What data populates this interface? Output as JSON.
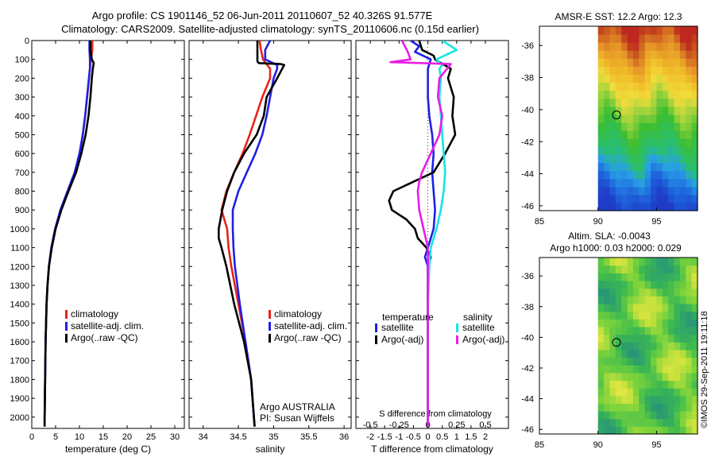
{
  "header": {
    "title_line1": "Argo profile: CS 1901146_52 06-Jun-2011 20110607_52 40.326S 91.577E",
    "title_line2": "Climatology: CARS2009. Satellite-adjusted climatology: synTS_20110606.nc (0.15d earlier)"
  },
  "colors": {
    "climatology": "#e8231a",
    "satellite": "#1f1fe6",
    "argo": "#000000",
    "salinity_sat": "#14e6e6",
    "salinity_argo": "#e61ee6"
  },
  "depth_ticks": [
    0,
    100,
    200,
    300,
    400,
    500,
    600,
    700,
    800,
    900,
    1000,
    1100,
    1200,
    1300,
    1400,
    1500,
    1600,
    1700,
    1800,
    1900,
    2000
  ],
  "depth_range": [
    0,
    2060
  ],
  "chart_data": [
    {
      "type": "line",
      "xlabel": "temperature (deg C)",
      "ylabel": "depth",
      "xlim": [
        0,
        32
      ],
      "xticks": [
        0,
        5,
        10,
        15,
        20,
        25,
        30
      ],
      "legend": [
        "climatology",
        "satellite-adj. clim.",
        "Argo(..raw -QC)"
      ],
      "series": [
        {
          "name": "climatology",
          "color": "climatology",
          "depth": [
            0,
            50,
            100,
            150,
            200,
            300,
            400,
            500,
            600,
            700,
            800,
            900,
            1000,
            1100,
            1200,
            1300,
            1400,
            1500,
            1600,
            1800,
            2000,
            2050
          ],
          "values": [
            12.7,
            12.7,
            12.4,
            12.2,
            12.0,
            11.6,
            11.2,
            10.7,
            10.1,
            9.2,
            7.7,
            6.1,
            4.9,
            4.1,
            3.6,
            3.3,
            3.1,
            3.0,
            2.9,
            2.8,
            2.7,
            2.7
          ]
        },
        {
          "name": "satellite-adj. clim.",
          "color": "satellite",
          "depth": [
            0,
            50,
            100,
            150,
            200,
            300,
            400,
            500,
            600,
            700,
            800,
            900,
            1000,
            1100,
            1200,
            1300,
            1400,
            1500,
            1600,
            1800,
            2000,
            2050
          ],
          "values": [
            12.1,
            12.1,
            12.2,
            12.2,
            12.0,
            11.6,
            11.2,
            10.7,
            10.0,
            9.0,
            7.5,
            6.0,
            4.9,
            4.1,
            3.6,
            3.3,
            3.1,
            3.0,
            2.9,
            2.8,
            2.7,
            2.7
          ]
        },
        {
          "name": "Argo(..raw -QC)",
          "color": "argo",
          "depth": [
            0,
            50,
            100,
            120,
            150,
            200,
            300,
            400,
            500,
            600,
            700,
            800,
            900,
            1000,
            1100,
            1200,
            1300,
            1400,
            1500,
            1600,
            1800,
            2000,
            2050
          ],
          "values": [
            12.3,
            12.3,
            12.6,
            13.0,
            12.8,
            12.6,
            12.3,
            11.9,
            11.3,
            10.4,
            9.3,
            7.7,
            6.2,
            5.0,
            4.2,
            3.6,
            3.3,
            3.1,
            3.0,
            2.9,
            2.8,
            2.7,
            2.7
          ]
        }
      ]
    },
    {
      "type": "line",
      "xlabel": "salinity",
      "ylabel": "depth",
      "xlim": [
        33.8,
        36.1
      ],
      "xticks": [
        34,
        34.5,
        35,
        35.5,
        36
      ],
      "xticklabels": [
        "34",
        "34.5",
        "35",
        "35.5",
        "36"
      ],
      "legend": [
        "climatology",
        "satellite-adj. clim.",
        "Argo(..raw -QC)"
      ],
      "annotation": [
        "Argo AUSTRALIA",
        "PI: Susan Wijffels"
      ],
      "series": [
        {
          "name": "climatology",
          "color": "climatology",
          "depth": [
            0,
            50,
            100,
            150,
            200,
            300,
            400,
            500,
            600,
            700,
            800,
            900,
            1000,
            1100,
            1200,
            1400,
            1600,
            1800,
            2000,
            2050
          ],
          "values": [
            34.8,
            34.82,
            34.85,
            34.95,
            34.95,
            34.84,
            34.75,
            34.66,
            34.56,
            34.44,
            34.33,
            34.26,
            34.34,
            34.36,
            34.4,
            34.5,
            34.6,
            34.68,
            34.72,
            34.73
          ]
        },
        {
          "name": "satellite-adj. clim.",
          "color": "satellite",
          "depth": [
            0,
            50,
            100,
            130,
            150,
            200,
            300,
            400,
            500,
            600,
            700,
            800,
            900,
            1000,
            1100,
            1200,
            1400,
            1600,
            1800,
            2000,
            2050
          ],
          "values": [
            34.95,
            34.88,
            34.88,
            35.05,
            35.05,
            35.0,
            34.95,
            34.9,
            34.84,
            34.74,
            34.62,
            34.5,
            34.42,
            34.42,
            34.43,
            34.45,
            34.52,
            34.6,
            34.68,
            34.72,
            34.73
          ]
        },
        {
          "name": "Argo(..raw -QC)",
          "color": "argo",
          "depth": [
            0,
            110,
            120,
            125,
            130,
            200,
            300,
            400,
            500,
            600,
            700,
            800,
            900,
            1000,
            1050,
            1100,
            1200,
            1400,
            1600,
            1800,
            2000,
            2050
          ],
          "values": [
            34.77,
            34.77,
            34.79,
            35.1,
            35.15,
            35.05,
            34.9,
            34.86,
            34.76,
            34.58,
            34.44,
            34.34,
            34.27,
            34.22,
            34.22,
            34.26,
            34.33,
            34.44,
            34.58,
            34.68,
            34.72,
            34.73
          ]
        }
      ]
    },
    {
      "type": "line",
      "xlabel_top": "S difference from climatology",
      "xlabel": "T difference from climatology",
      "xlim": [
        -2.5,
        2.8
      ],
      "xticks": [
        -2,
        -1.5,
        -1,
        -0.5,
        0,
        0.5,
        1,
        1.5,
        2
      ],
      "xticklabels": [
        "-2",
        "-1.5",
        "-1",
        "-0.5",
        "0",
        "0.5",
        "1",
        "1.5",
        "2"
      ],
      "s_ticklabels": [
        "-0.5",
        "-0.25",
        "0",
        "0.25",
        "0.5"
      ],
      "s_tick_positions": [
        -2,
        -1,
        0,
        1,
        2
      ],
      "legend_headers": [
        "temperature",
        "salinity"
      ],
      "legend": [
        "satellite",
        "Argo(-adj)",
        "satellite",
        "Argo(-adj)"
      ],
      "series": [
        {
          "name": "temperature satellite",
          "color": "satellite",
          "depth": [
            0,
            30,
            60,
            100,
            150,
            200,
            300,
            400,
            500,
            600,
            700,
            800,
            900,
            1000,
            1050,
            1100,
            1150,
            1200,
            1300,
            1500,
            1700,
            2000,
            2050
          ],
          "values": [
            -0.6,
            -0.3,
            -0.45,
            0.1,
            0.0,
            0.0,
            0.0,
            0.05,
            0.15,
            0.2,
            0.15,
            0.2,
            0.25,
            0.2,
            0.1,
            0.0,
            -0.1,
            0.0,
            0.0,
            0.0,
            0.0,
            0.0,
            0.0
          ]
        },
        {
          "name": "temperature Argo(-adj)",
          "color": "argo",
          "depth": [
            0,
            50,
            80,
            100,
            150,
            200,
            300,
            400,
            500,
            600,
            700,
            800,
            850,
            900,
            950,
            1000,
            1050,
            1100,
            1150,
            1200,
            1300,
            1500,
            2000,
            2050
          ],
          "values": [
            -0.3,
            -0.2,
            0.2,
            0.25,
            0.8,
            0.7,
            0.9,
            0.85,
            0.95,
            0.6,
            0.2,
            -1.2,
            -1.35,
            -1.25,
            -0.75,
            -0.45,
            -0.35,
            -0.05,
            0.1,
            0.0,
            0.0,
            0.0,
            0.0,
            0.0
          ]
        },
        {
          "name": "salinity satellite",
          "color": "salinity_sat",
          "depth": [
            0,
            50,
            100,
            130,
            150,
            200,
            300,
            400,
            500,
            600,
            700,
            800,
            900,
            1000,
            1100,
            1200,
            1400,
            1600,
            2000,
            2050
          ],
          "values": [
            0.5,
            1.0,
            0.3,
            0.5,
            0.4,
            0.45,
            0.4,
            0.45,
            0.5,
            0.55,
            0.6,
            0.55,
            0.45,
            0.3,
            0.1,
            0.05,
            0.0,
            0.0,
            0.0,
            0.0
          ]
        },
        {
          "name": "salinity Argo(-adj)",
          "color": "salinity_argo",
          "depth": [
            0,
            60,
            100,
            115,
            125,
            200,
            300,
            400,
            500,
            600,
            700,
            750,
            800,
            900,
            1000,
            1100,
            1150,
            1200,
            1300,
            1500,
            2000,
            2050
          ],
          "values": [
            -0.9,
            -0.7,
            -0.6,
            -1.3,
            0.8,
            0.4,
            0.35,
            0.5,
            0.4,
            0.1,
            -0.2,
            -0.3,
            -0.35,
            -0.3,
            -0.15,
            0.0,
            0.0,
            0.0,
            0.0,
            0.0,
            0.0,
            0.0
          ]
        }
      ]
    },
    {
      "type": "heatmap",
      "title": "AMSR-E SST: 12.2 Argo: 12.3",
      "xlim": [
        85,
        98.5
      ],
      "ylim": [
        -46.3,
        -34.8
      ],
      "xticks": [
        85,
        90,
        95
      ],
      "yticks": [
        -36,
        -38,
        -40,
        -42,
        -44,
        -46
      ],
      "data_start_lon": 90,
      "marker": {
        "lon": 91.58,
        "lat": -40.33
      }
    },
    {
      "type": "heatmap",
      "title": "Altim. SLA: -0.0043",
      "subtitle": "Argo h1000: 0.03 h2000: 0.029",
      "xlim": [
        85,
        98.5
      ],
      "ylim": [
        -46.3,
        -34.8
      ],
      "xticks": [
        85,
        90,
        95
      ],
      "yticks": [
        -36,
        -38,
        -40,
        -42,
        -44,
        -46
      ],
      "data_start_lon": 90,
      "marker": {
        "lon": 91.58,
        "lat": -40.33
      }
    }
  ],
  "footer": {
    "stamp": "©IMOS 29-Sep-2011 19:11:18"
  }
}
